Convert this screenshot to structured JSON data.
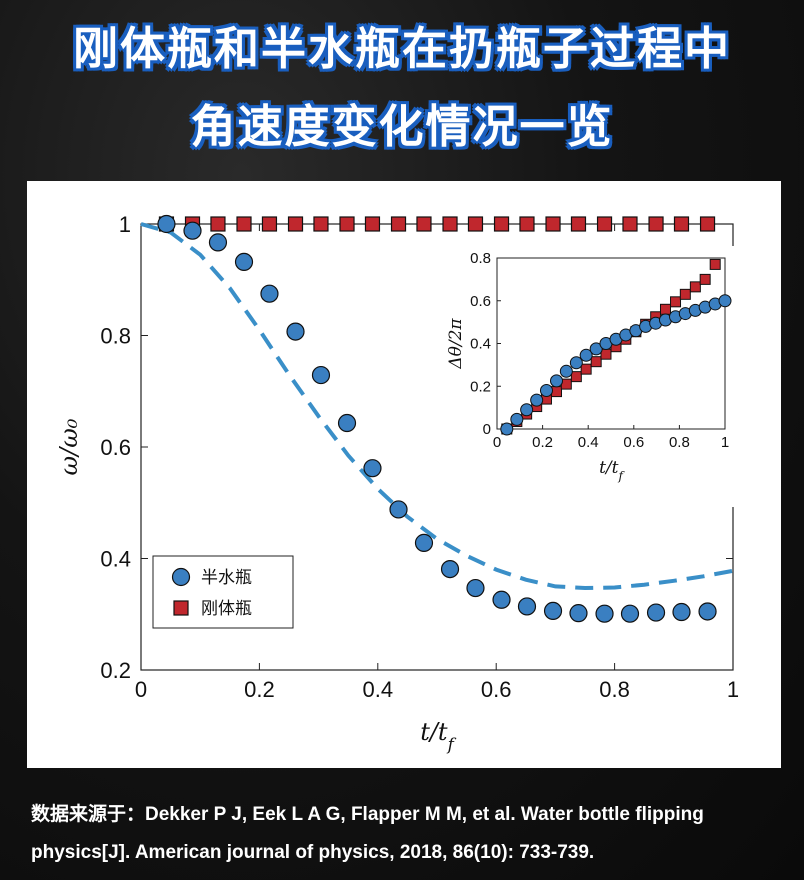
{
  "header": {
    "title_line1": "刚体瓶和半水瓶在扔瓶子过程中",
    "title_line2": "角速度变化情况一览"
  },
  "footer": {
    "source": "数据来源于：Dekker P J, Eek L A G, Flapper M M, et al. Water bottle flipping physics[J]. American journal of physics, 2018, 86(10): 733-739."
  },
  "colors": {
    "half_water": "#3a7fc1",
    "rigid": "#c0272d",
    "dashed": "#3a8fc8"
  },
  "chart_data": [
    {
      "type": "scatter",
      "xlabel": "t/t_f",
      "ylabel": "ω/ω₀",
      "xlim": [
        0,
        1
      ],
      "ylim": [
        0.2,
        1
      ],
      "xticks": [
        "0",
        "0.2",
        "0.4",
        "0.6",
        "0.8",
        "1"
      ],
      "yticks": [
        "0.2",
        "0.4",
        "0.6",
        "0.8",
        "1"
      ],
      "legend_position": "lower-left",
      "series": [
        {
          "name": "半水瓶",
          "marker": "circle",
          "x": [
            0.043,
            0.087,
            0.13,
            0.174,
            0.217,
            0.261,
            0.304,
            0.348,
            0.391,
            0.435,
            0.478,
            0.522,
            0.565,
            0.609,
            0.652,
            0.696,
            0.739,
            0.783,
            0.826,
            0.87,
            0.913,
            0.957
          ],
          "y": [
            1.0,
            0.988,
            0.967,
            0.932,
            0.875,
            0.807,
            0.729,
            0.643,
            0.562,
            0.488,
            0.428,
            0.381,
            0.347,
            0.326,
            0.314,
            0.306,
            0.302,
            0.301,
            0.301,
            0.303,
            0.304,
            0.305
          ]
        },
        {
          "name": "刚体瓶",
          "marker": "square",
          "x": [
            0.043,
            0.087,
            0.13,
            0.174,
            0.217,
            0.261,
            0.304,
            0.348,
            0.391,
            0.435,
            0.478,
            0.522,
            0.565,
            0.609,
            0.652,
            0.696,
            0.739,
            0.783,
            0.826,
            0.87,
            0.913,
            0.957
          ],
          "y": [
            1,
            1,
            1,
            1,
            1,
            1,
            1,
            1,
            1,
            1,
            1,
            1,
            1,
            1,
            1,
            1,
            1,
            1,
            1,
            1,
            1,
            1
          ]
        },
        {
          "marker": "dashed-line",
          "x": [
            0.0,
            0.05,
            0.1,
            0.15,
            0.2,
            0.25,
            0.3,
            0.35,
            0.4,
            0.45,
            0.5,
            0.55,
            0.6,
            0.65,
            0.7,
            0.75,
            0.8,
            0.85,
            0.9,
            0.95,
            1.0
          ],
          "y": [
            1.0,
            0.985,
            0.945,
            0.885,
            0.81,
            0.73,
            0.655,
            0.585,
            0.525,
            0.475,
            0.435,
            0.405,
            0.38,
            0.362,
            0.35,
            0.347,
            0.348,
            0.353,
            0.36,
            0.368,
            0.378
          ]
        }
      ]
    },
    {
      "type": "scatter",
      "xlabel": "t/t_f",
      "ylabel": "Δθ/2π",
      "xlim": [
        0,
        1
      ],
      "ylim": [
        0,
        0.8
      ],
      "xticks": [
        "0",
        "0.2",
        "0.4",
        "0.6",
        "0.8",
        "1"
      ],
      "yticks": [
        "0",
        "0.2",
        "0.4",
        "0.6",
        "0.8"
      ],
      "series": [
        {
          "marker": "circle",
          "x": [
            0.043,
            0.087,
            0.13,
            0.174,
            0.217,
            0.261,
            0.304,
            0.348,
            0.391,
            0.435,
            0.478,
            0.522,
            0.565,
            0.609,
            0.652,
            0.696,
            0.739,
            0.783,
            0.826,
            0.87,
            0.913,
            0.957,
            1.0
          ],
          "y": [
            0.0,
            0.045,
            0.09,
            0.135,
            0.18,
            0.225,
            0.27,
            0.31,
            0.345,
            0.375,
            0.4,
            0.42,
            0.44,
            0.46,
            0.48,
            0.495,
            0.51,
            0.525,
            0.54,
            0.555,
            0.57,
            0.585,
            0.6
          ]
        },
        {
          "marker": "square",
          "x": [
            0.043,
            0.087,
            0.13,
            0.174,
            0.217,
            0.261,
            0.304,
            0.348,
            0.391,
            0.435,
            0.478,
            0.522,
            0.565,
            0.609,
            0.652,
            0.696,
            0.739,
            0.783,
            0.826,
            0.87,
            0.913,
            0.957
          ],
          "y": [
            0.0,
            0.035,
            0.07,
            0.105,
            0.14,
            0.175,
            0.21,
            0.245,
            0.28,
            0.315,
            0.35,
            0.385,
            0.42,
            0.455,
            0.49,
            0.525,
            0.56,
            0.595,
            0.63,
            0.665,
            0.7,
            0.77
          ]
        }
      ]
    }
  ]
}
